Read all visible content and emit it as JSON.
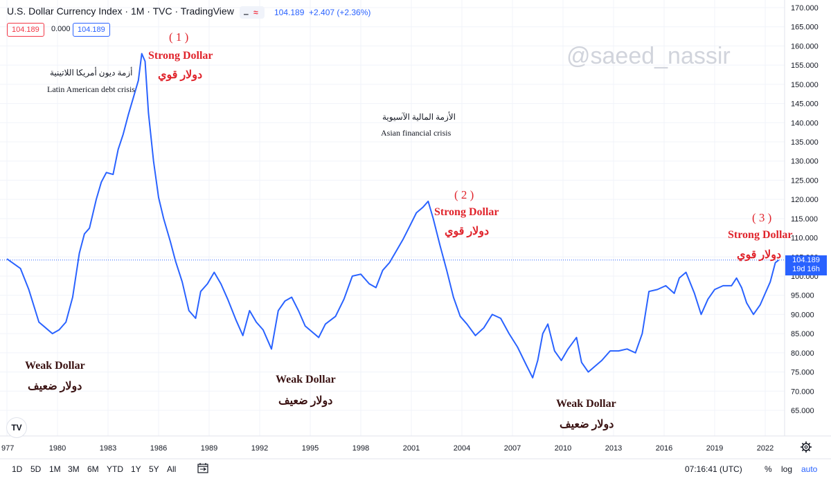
{
  "header": {
    "title": "U.S. Dollar Currency Index · 1M · TVC · TradingView",
    "toggle_dash": "‒",
    "toggle_wave": "≈",
    "last_price": "104.189",
    "change": "+2.407 (+2.36%)"
  },
  "quote": {
    "bid": "104.189",
    "spread": "0.000",
    "ask": "104.189"
  },
  "watermark": "@saeed_nassir",
  "annotations": {
    "latin_ar": "أزمة ديون أمريكا اللاتينية",
    "latin_en": "Latin American debt crisis",
    "asian_ar": "الأزمة المالية الآسيوية",
    "asian_en": "Asian financial crisis",
    "num1": "( 1 )",
    "num2": "( 2 )",
    "num3": "( 3 )",
    "strong_en": "Strong Dollar",
    "strong_ar": "دولار قوي",
    "weak_en": "Weak Dollar",
    "weak_ar": "دولار ضعيف"
  },
  "price_label": {
    "value": "104.189",
    "countdown": "19d 16h"
  },
  "colors": {
    "line": "#2962ff",
    "accent": "#2962ff",
    "negative": "#f23645",
    "annotation_red": "#e0242c",
    "annotation_dark": "#3a1212"
  },
  "y_ticks": [
    "170.000",
    "165.000",
    "160.000",
    "155.000",
    "150.000",
    "145.000",
    "140.000",
    "135.000",
    "130.000",
    "125.000",
    "120.000",
    "115.000",
    "110.000",
    "105.000",
    "100.000",
    "95.000",
    "90.000",
    "85.000",
    "80.000",
    "75.000",
    "70.000",
    "65.000"
  ],
  "x_ticks": [
    "977",
    "1980",
    "1983",
    "1986",
    "1989",
    "1992",
    "1995",
    "1998",
    "2001",
    "2004",
    "2007",
    "2010",
    "2013",
    "2016",
    "2019",
    "2022"
  ],
  "timeframes": [
    "1D",
    "5D",
    "1M",
    "3M",
    "6M",
    "YTD",
    "1Y",
    "5Y",
    "All"
  ],
  "bottom": {
    "time": "07:16:41 (UTC)",
    "percent": "%",
    "log": "log",
    "auto": "auto"
  },
  "icons": {
    "settings": "gear-icon",
    "compare": "calendar-range-icon",
    "logo": "tradingview-logo-icon"
  },
  "logo_text": "TV",
  "chart_data": {
    "type": "line",
    "title": "U.S. Dollar Currency Index",
    "ylim": [
      62,
      171
    ],
    "xlim": [
      1976.9,
      2023.4
    ],
    "last_value": 104.189,
    "x": [
      1977.0,
      1977.8,
      1978.3,
      1978.9,
      1979.3,
      1979.7,
      1980.1,
      1980.5,
      1980.9,
      1981.3,
      1981.6,
      1981.9,
      1982.3,
      1982.6,
      1982.9,
      1983.3,
      1983.6,
      1983.9,
      1984.2,
      1984.5,
      1984.8,
      1985.0,
      1985.2,
      1985.4,
      1985.7,
      1986.0,
      1986.3,
      1986.7,
      1987.0,
      1987.4,
      1987.8,
      1988.2,
      1988.5,
      1988.9,
      1989.3,
      1989.7,
      1990.1,
      1990.6,
      1991.0,
      1991.4,
      1991.8,
      1992.2,
      1992.7,
      1993.1,
      1993.5,
      1993.9,
      1994.3,
      1994.7,
      1995.1,
      1995.5,
      1995.9,
      1996.5,
      1997.0,
      1997.5,
      1998.0,
      1998.5,
      1998.9,
      1999.3,
      1999.7,
      2000.1,
      2000.5,
      2000.9,
      2001.3,
      2001.7,
      2002.0,
      2002.3,
      2002.7,
      2003.1,
      2003.5,
      2003.9,
      2004.3,
      2004.8,
      2005.3,
      2005.8,
      2006.3,
      2006.8,
      2007.3,
      2007.8,
      2008.2,
      2008.5,
      2008.8,
      2009.1,
      2009.5,
      2009.9,
      2010.3,
      2010.8,
      2011.1,
      2011.5,
      2011.9,
      2012.3,
      2012.8,
      2013.3,
      2013.8,
      2014.3,
      2014.7,
      2015.1,
      2015.6,
      2016.1,
      2016.6,
      2016.9,
      2017.3,
      2017.8,
      2018.2,
      2018.6,
      2019.0,
      2019.5,
      2020.0,
      2020.3,
      2020.6,
      2020.9,
      2021.3,
      2021.7,
      2022.0,
      2022.3,
      2022.6,
      2022.8
    ],
    "y": [
      104.5,
      102.0,
      96.5,
      88.0,
      86.5,
      85.0,
      86.0,
      88.0,
      94.5,
      106.0,
      111.0,
      112.5,
      120.0,
      124.5,
      127.0,
      126.5,
      133.0,
      137.0,
      142.0,
      146.5,
      151.0,
      158.0,
      156.0,
      142.5,
      130.0,
      120.5,
      115.0,
      109.0,
      104.0,
      98.5,
      91.0,
      89.0,
      96.0,
      98.0,
      101.0,
      98.0,
      94.0,
      88.5,
      84.5,
      91.0,
      88.0,
      86.0,
      81.0,
      91.0,
      93.5,
      94.5,
      91.0,
      87.0,
      85.5,
      84.0,
      87.5,
      89.5,
      94.0,
      100.0,
      100.5,
      98.0,
      97.0,
      101.5,
      103.5,
      106.5,
      109.5,
      113.0,
      116.5,
      118.0,
      119.5,
      115.0,
      108.0,
      101.5,
      94.5,
      89.5,
      87.5,
      84.5,
      86.5,
      90.0,
      89.0,
      85.0,
      81.5,
      77.0,
      73.5,
      78.0,
      85.0,
      87.5,
      80.5,
      78.0,
      81.0,
      84.0,
      77.5,
      75.0,
      76.5,
      78.0,
      80.5,
      80.5,
      81.0,
      80.0,
      85.0,
      96.0,
      96.5,
      97.5,
      95.5,
      99.5,
      101.0,
      95.5,
      90.0,
      94.0,
      96.5,
      97.5,
      97.5,
      99.5,
      97.0,
      93.0,
      90.0,
      92.5,
      95.5,
      98.5,
      103.5,
      104.189
    ]
  }
}
